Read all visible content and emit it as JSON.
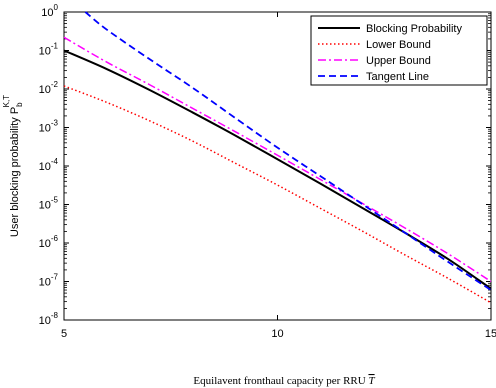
{
  "chart_data": {
    "type": "line",
    "title": "",
    "xlabel": "Equilavent fronthaul capacity per RRU",
    "xlabel_symbol": "T",
    "ylabel": "User blocking probability P",
    "ylabel_sub": "b",
    "ylabel_sup": "K,T",
    "xlim": [
      5,
      15
    ],
    "ylim": [
      1e-08,
      1
    ],
    "y_scale": "log",
    "x_ticks": [
      "5",
      "10",
      "15"
    ],
    "y_ticks": [
      {
        "base": "10",
        "exp": "0"
      },
      {
        "base": "10",
        "exp": "-1"
      },
      {
        "base": "10",
        "exp": "-2"
      },
      {
        "base": "10",
        "exp": "-3"
      },
      {
        "base": "10",
        "exp": "-4"
      },
      {
        "base": "10",
        "exp": "-5"
      },
      {
        "base": "10",
        "exp": "-6"
      },
      {
        "base": "10",
        "exp": "-7"
      },
      {
        "base": "10",
        "exp": "-8"
      }
    ],
    "grid": false,
    "legend_position": "top-right",
    "series": [
      {
        "name": "Blocking Probability",
        "color": "#000000",
        "dash": "solid",
        "x": [
          5,
          6,
          7,
          8,
          9,
          10,
          11,
          12,
          13,
          14,
          15
        ],
        "y": [
          0.1,
          0.033,
          0.0095,
          0.0025,
          0.00063,
          0.00015,
          3.5e-05,
          8e-06,
          1.8e-06,
          3.8e-07,
          6.5e-08
        ]
      },
      {
        "name": "Lower Bound",
        "color": "#ff0000",
        "dash": "dotted",
        "x": [
          5,
          6,
          7,
          8,
          9,
          10,
          11,
          12,
          13,
          14,
          15
        ],
        "y": [
          0.012,
          0.0045,
          0.0015,
          0.00045,
          0.00012,
          3.2e-05,
          8e-06,
          2e-06,
          4.8e-07,
          1.2e-07,
          2.8e-08
        ]
      },
      {
        "name": "Upper Bound",
        "color": "#ff00ff",
        "dash": "dashdot",
        "x": [
          5,
          6,
          7,
          8,
          9,
          10,
          11,
          12,
          13,
          14,
          15
        ],
        "y": [
          0.22,
          0.05,
          0.013,
          0.0032,
          0.00079,
          0.00019,
          4.5e-05,
          1.05e-05,
          2.4e-06,
          5.2e-07,
          1e-07
        ]
      },
      {
        "name": "Tangent Line",
        "color": "#0000ff",
        "dash": "dashed",
        "x": [
          5.5,
          6,
          7,
          8,
          9,
          10,
          11,
          12,
          13,
          14,
          15
        ],
        "y": [
          1.0,
          0.35,
          0.06,
          0.011,
          0.0018,
          0.0003,
          5.5e-05,
          1e-05,
          1.8e-06,
          3.2e-07,
          6e-08
        ]
      }
    ]
  }
}
